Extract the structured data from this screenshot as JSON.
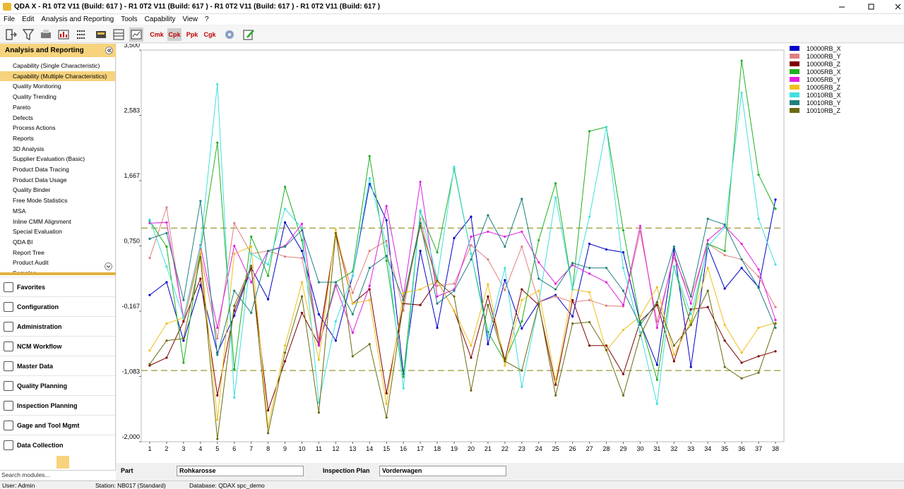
{
  "window": {
    "title": "QDA X - R1 0T2 V11 (Build: 617 ) - R1 0T2 V11 (Build: 617 ) - R1 0T2 V11 (Build: 617 ) - R1 0T2 V11 (Build: 617 )"
  },
  "menu": [
    "File",
    "Edit",
    "Analysis and Reporting",
    "Tools",
    "Capability",
    "View",
    "?"
  ],
  "toolbar_text_buttons": [
    "Cmk",
    "Cpk",
    "Ppk",
    "Cgk"
  ],
  "sidebar": {
    "header": "Analysis and Reporting",
    "items": [
      "Capability (Single Characteristic)",
      "Capability (Multiple Characteristics)",
      "Quality Monitoring",
      "Quality Trending",
      "Pareto",
      "Defects",
      "Process Actions",
      "Reports",
      "3D Analysis",
      "Supplier Evaluation (Basic)",
      "Product Data Tracing",
      "Product Data Usage",
      "Quality Binder",
      "Free Mode Statistics",
      "MSA",
      "Inline CMM Alignment",
      "Special Evaluation",
      "QDA BI",
      "Report Tree",
      "Product Audit",
      "Samples"
    ],
    "selected": "Capability (Multiple Characteristics)",
    "groups": [
      "Favorites",
      "Configuration",
      "Administration",
      "NCM Workflow",
      "Master Data",
      "Quality Planning",
      "Inspection Planning",
      "Gage and Tool Mgmt",
      "Data Collection"
    ],
    "search_placeholder": "Search modules..."
  },
  "chart_data": {
    "type": "line",
    "x": [
      1,
      2,
      3,
      4,
      5,
      6,
      7,
      8,
      9,
      10,
      11,
      12,
      13,
      14,
      15,
      16,
      17,
      18,
      19,
      20,
      21,
      22,
      23,
      24,
      25,
      26,
      27,
      28,
      29,
      30,
      31,
      32,
      33,
      34,
      35,
      36,
      37,
      38
    ],
    "xlim": [
      0.5,
      38.5
    ],
    "xticks": [
      1,
      2,
      3,
      4,
      5,
      6,
      7,
      8,
      9,
      10,
      11,
      12,
      13,
      14,
      15,
      16,
      17,
      18,
      19,
      20,
      21,
      22,
      23,
      24,
      25,
      26,
      27,
      28,
      29,
      30,
      31,
      32,
      33,
      34,
      35,
      36,
      37,
      38
    ],
    "ylim": [
      -2,
      3.5
    ],
    "yticks": [
      {
        "value": 3.5,
        "label": "3,500"
      },
      {
        "value": 2.583,
        "label": "2,583"
      },
      {
        "value": 1.667,
        "label": "1,667"
      },
      {
        "value": 0.75,
        "label": "0,750"
      },
      {
        "value": -0.167,
        "label": "-0,167"
      },
      {
        "value": -1.083,
        "label": "-1,083"
      },
      {
        "value": -2,
        "label": "-2,000"
      }
    ],
    "reference_lines": [
      1,
      -1
    ],
    "reference_line_color": "#9a9a30",
    "series": [
      {
        "name": "10000RB_X",
        "color": "#0000c8",
        "values": [
          0.06,
          0.24,
          -0.58,
          0.2,
          -0.75,
          -0.23,
          0.44,
          0,
          1.08,
          0.68,
          -0.21,
          -0.58,
          0.33,
          1.62,
          1.11,
          -1.05,
          0.68,
          -0.4,
          0.86,
          1.16,
          -0.63,
          0.27,
          -0.41,
          -0.04,
          0.06,
          -0.24,
          0.78,
          0.7,
          0.66,
          -0.33,
          -0.92,
          0.71,
          -0.95,
          0.74,
          0.15,
          0.44,
          0.17,
          1.4
        ]
      },
      {
        "name": "10000RB_Y",
        "color": "#e08080",
        "values": [
          0.58,
          1.29,
          -0.31,
          0.64,
          -0.55,
          1.07,
          0.64,
          0.68,
          0.6,
          0.58,
          -0.55,
          0.91,
          0.09,
          0.68,
          0.82,
          -0.16,
          1.13,
          0.19,
          0.22,
          0.76,
          0.56,
          0.13,
          0.74,
          -0.04,
          0.04,
          -0.04,
          -0.01,
          -0.09,
          -0.1,
          0.95,
          -0.31,
          0.58,
          0.04,
          0.78,
          0.62,
          0.56,
          0.32,
          -0.11
        ]
      },
      {
        "name": "10000RB_Z",
        "color": "#800000",
        "values": [
          -0.93,
          -0.82,
          -0.31,
          0.29,
          -1.35,
          -0.16,
          0.44,
          -1.56,
          -0.87,
          -0.19,
          -0.63,
          0.93,
          -0.06,
          0.14,
          -1.32,
          -0.06,
          -0.08,
          0.26,
          -0.16,
          -0.82,
          0.04,
          -0.85,
          0.14,
          -0.08,
          -1.2,
          -0.01,
          -0.65,
          -0.65,
          -1.05,
          -0.31,
          -0.08,
          -0.87,
          -0.14,
          -0.11,
          -0.58,
          -0.89,
          -0.8,
          -0.73
        ]
      },
      {
        "name": "10005RB_X",
        "color": "#20b020",
        "values": [
          1.1,
          0.74,
          -0.89,
          0.68,
          2.2,
          -0.98,
          0.88,
          0.33,
          1.58,
          0.83,
          -0.65,
          0.24,
          0.39,
          2.01,
          0.54,
          -1.09,
          1.23,
          0.66,
          1.83,
          0.64,
          -0.46,
          -0.87,
          -0.31,
          0.83,
          1.63,
          0.14,
          2.36,
          2.42,
          0.97,
          -0.31,
          -1.13,
          0.46,
          -0.36,
          0.78,
          0.68,
          3.35,
          1.75,
          1.27
        ]
      },
      {
        "name": "10005RB_Y",
        "color": "#e020e0",
        "values": [
          1.07,
          1.08,
          -0.26,
          0.76,
          -0.4,
          0.75,
          0.24,
          0.68,
          0.75,
          1.06,
          -0.65,
          0.19,
          -0.47,
          0.19,
          1.31,
          0.04,
          1.65,
          0.04,
          0.14,
          0.88,
          0.95,
          0.88,
          0.95,
          0.52,
          0.22,
          0.48,
          0.36,
          0.24,
          -0.08,
          1.03,
          -0.4,
          0.64,
          -0.06,
          0.83,
          1.03,
          0.78,
          0.42,
          -0.29
        ]
      },
      {
        "name": "10005RB_Z",
        "color": "#f0c020",
        "values": [
          -0.72,
          -0.34,
          -0.26,
          0.68,
          -1.69,
          0.64,
          0.74,
          -1.79,
          -0.65,
          0.24,
          -0.85,
          0.98,
          -0.06,
          -0.01,
          -1.47,
          0.09,
          0.14,
          0.26,
          -0.16,
          -0.65,
          0.21,
          -0.93,
          -0.01,
          0.12,
          -1.15,
          0.14,
          0.1,
          -0.72,
          -0.43,
          -0.24,
          0.17,
          -0.78,
          -0.31,
          0.44,
          -0.36,
          -0.75,
          -0.4,
          -0.33
        ]
      },
      {
        "name": "10010RB_X",
        "color": "#40e0e0",
        "values": [
          1.12,
          0.46,
          -0.26,
          0.74,
          3.02,
          -1.38,
          0.64,
          0.49,
          1.27,
          1,
          -1.45,
          -0.31,
          0.33,
          1.7,
          0.75,
          -1.25,
          1.25,
          0.29,
          1.86,
          0.64,
          -0.53,
          0.44,
          -1.23,
          -0.06,
          1.43,
          0.14,
          1.16,
          2.42,
          0.44,
          -0.46,
          -1.47,
          0.46,
          -0.21,
          0.74,
          1.01,
          2.9,
          1.13,
          0.49
        ]
      },
      {
        "name": "10010RB_Y",
        "color": "#208080",
        "values": [
          0.85,
          0.93,
          -0.01,
          1.38,
          -0.78,
          0.12,
          -0.19,
          0.68,
          0.74,
          0.97,
          0.24,
          0.24,
          -0.21,
          0.44,
          0.61,
          -0.01,
          1.07,
          -0.06,
          0.12,
          0.56,
          1.18,
          0.74,
          1.41,
          0.29,
          0.14,
          0.51,
          0.44,
          0.44,
          0.12,
          -0.36,
          -0.04,
          0.74,
          0.04,
          1.13,
          1.05,
          0.56,
          0.16,
          -0.4
        ]
      },
      {
        "name": "10010RB_Z",
        "color": "#6b6b10",
        "values": [
          -0.91,
          -0.58,
          -0.55,
          0.59,
          -1.96,
          -0.09,
          0.47,
          -1.88,
          -0.75,
          0.04,
          -1.59,
          0.93,
          -0.8,
          -0.63,
          -1.66,
          -0.06,
          1.03,
          0.26,
          0.04,
          -1.28,
          -0.08,
          -0.87,
          -1,
          -0.06,
          -1.35,
          -0.34,
          -0.32,
          -0.71,
          -1.35,
          -0.51,
          -0.04,
          -0.65,
          -0.36,
          0.12,
          -0.95,
          -1.11,
          -1.03,
          -0.34
        ]
      }
    ]
  },
  "filters": {
    "part_label": "Part",
    "part_value": "Rohkarosse",
    "plan_label": "Inspection Plan",
    "plan_value": "Vorderwagen"
  },
  "status": {
    "user": "User: Admin",
    "station": "Station: NB017 (Standard)",
    "database": "Database: QDAX spc_demo"
  }
}
